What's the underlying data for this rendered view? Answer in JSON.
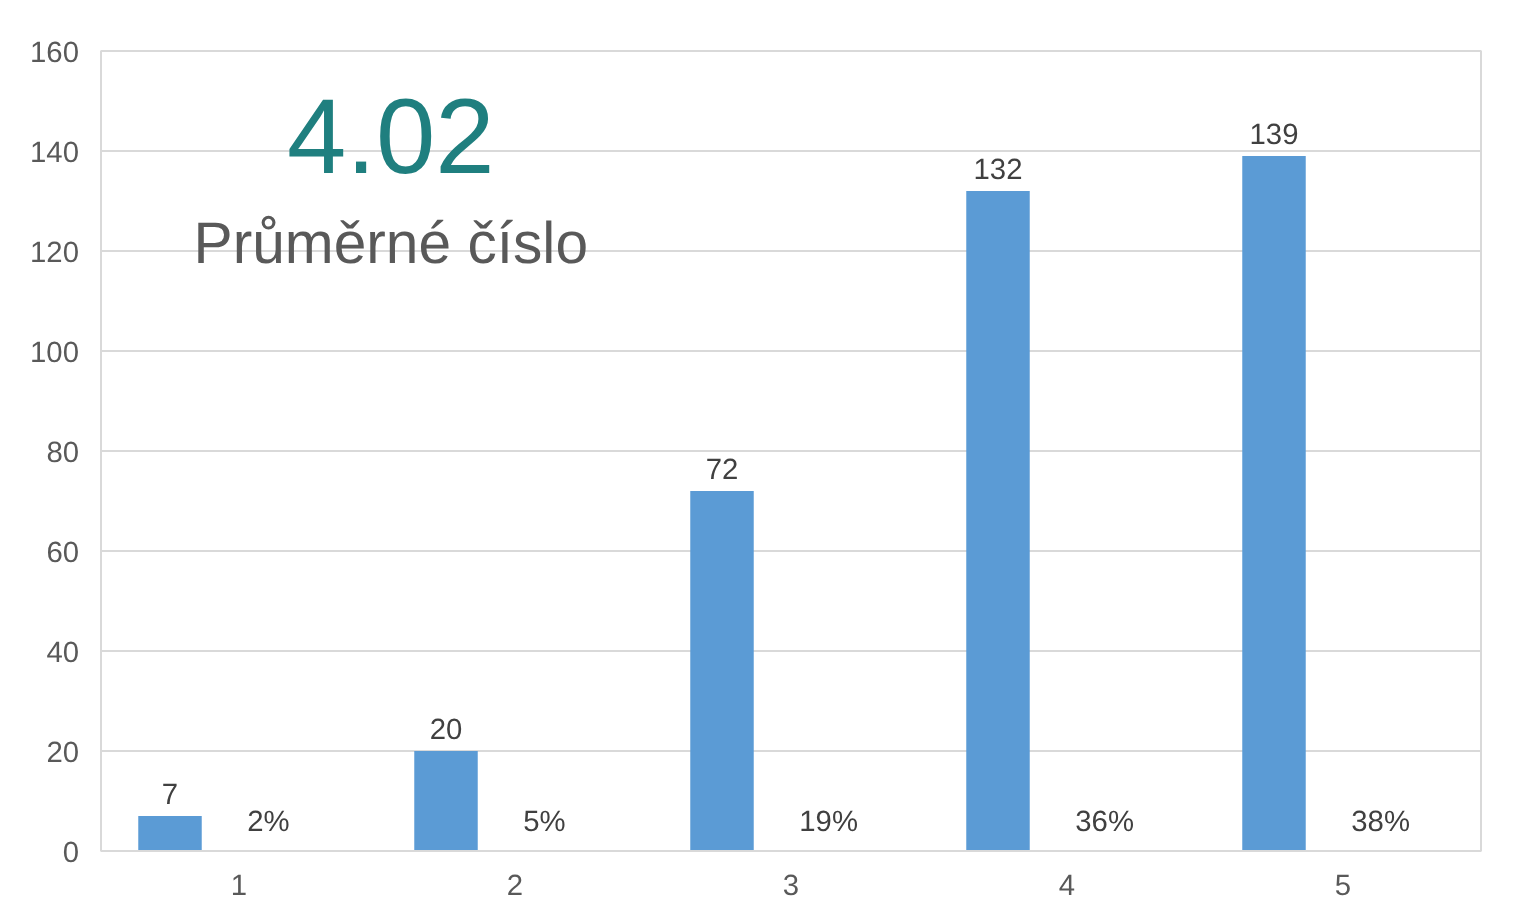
{
  "chart_data": {
    "type": "bar",
    "categories": [
      "1",
      "2",
      "3",
      "4",
      "5"
    ],
    "values": [
      7,
      20,
      72,
      132,
      139
    ],
    "color": "#5b9bd5",
    "data_labels": true,
    "ylim": [
      0,
      160
    ],
    "yticks": [
      0,
      20,
      40,
      60,
      80,
      100,
      120,
      140,
      160
    ],
    "grid": "y",
    "annotations": [
      "4.02",
      "Průměrné číslo",
      "2%",
      "5%",
      "19%",
      "36%",
      "38%"
    ]
  }
}
